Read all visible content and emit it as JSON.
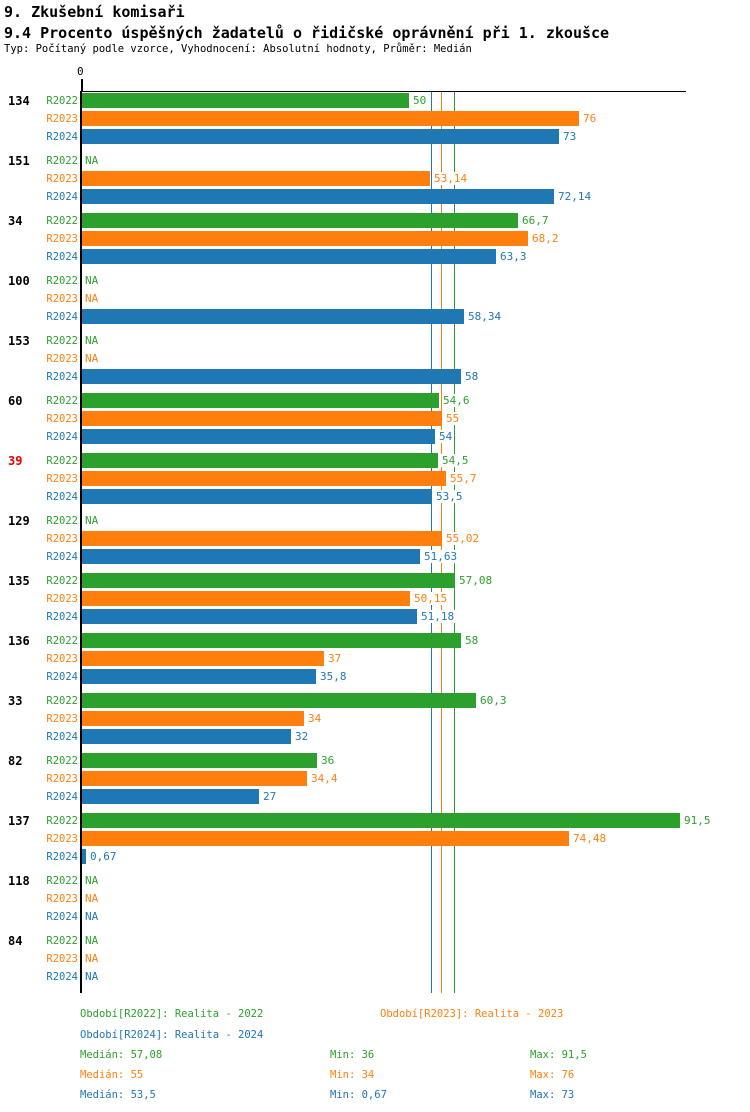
{
  "header": {
    "title": "9. Zkušební komisaři",
    "subtitle": "9.4 Procento úspěšných žadatelů o řidičské oprávnění při 1. zkoušce",
    "meta": "Typ: Počítaný podle vzorce, Vyhodnocení: Absolutní hodnoty, Průměr: Medián"
  },
  "colors": {
    "r2022": "#2ca02c",
    "r2023": "#ff7f0e",
    "r2024": "#1f77b4",
    "highlight_id": "#ee0000",
    "axis": "#000000"
  },
  "chart_data": {
    "type": "bar",
    "orientation": "horizontal",
    "title": "9.4 Procento úspěšných žadatelů o řidičské oprávnění při 1. zkoušce",
    "x_axis": {
      "origin_label": "0",
      "min": 0,
      "max": 92.5,
      "grid": false
    },
    "na_label": "NA",
    "series": [
      {
        "name": "R2022",
        "color": "#2ca02c",
        "median": 57.08,
        "min": 36,
        "max": 91.5
      },
      {
        "name": "R2023",
        "color": "#ff7f0e",
        "median": 55,
        "min": 34,
        "max": 76
      },
      {
        "name": "R2024",
        "color": "#1f77b4",
        "median": 53.5,
        "min": 0.67,
        "max": 73
      }
    ],
    "median_lines": [
      57.08,
      55,
      53.5
    ],
    "groups": [
      {
        "id": "134",
        "highlight": false,
        "values": [
          50,
          76,
          73
        ],
        "labels": [
          "50",
          "76",
          "73"
        ]
      },
      {
        "id": "151",
        "highlight": false,
        "values": [
          null,
          53.14,
          72.14
        ],
        "labels": [
          "NA",
          "53,14",
          "72,14"
        ]
      },
      {
        "id": "34",
        "highlight": false,
        "values": [
          66.7,
          68.2,
          63.3
        ],
        "labels": [
          "66,7",
          "68,2",
          "63,3"
        ]
      },
      {
        "id": "100",
        "highlight": false,
        "values": [
          null,
          null,
          58.34
        ],
        "labels": [
          "NA",
          "NA",
          "58,34"
        ]
      },
      {
        "id": "153",
        "highlight": false,
        "values": [
          null,
          null,
          58
        ],
        "labels": [
          "NA",
          "NA",
          "58"
        ]
      },
      {
        "id": "60",
        "highlight": false,
        "values": [
          54.6,
          55,
          54
        ],
        "labels": [
          "54,6",
          "55",
          "54"
        ]
      },
      {
        "id": "39",
        "highlight": true,
        "values": [
          54.5,
          55.7,
          53.5
        ],
        "labels": [
          "54,5",
          "55,7",
          "53,5"
        ]
      },
      {
        "id": "129",
        "highlight": false,
        "values": [
          null,
          55.02,
          51.63
        ],
        "labels": [
          "NA",
          "55,02",
          "51,63"
        ]
      },
      {
        "id": "135",
        "highlight": false,
        "values": [
          57.08,
          50.15,
          51.18
        ],
        "labels": [
          "57,08",
          "50,15",
          "51,18"
        ]
      },
      {
        "id": "136",
        "highlight": false,
        "values": [
          58,
          37,
          35.8
        ],
        "labels": [
          "58",
          "37",
          "35,8"
        ]
      },
      {
        "id": "33",
        "highlight": false,
        "values": [
          60.3,
          34,
          32
        ],
        "labels": [
          "60,3",
          "34",
          "32"
        ]
      },
      {
        "id": "82",
        "highlight": false,
        "values": [
          36,
          34.4,
          27
        ],
        "labels": [
          "36",
          "34,4",
          "27"
        ]
      },
      {
        "id": "137",
        "highlight": false,
        "values": [
          91.5,
          74.48,
          0.67
        ],
        "labels": [
          "91,5",
          "74,48",
          "0,67"
        ]
      },
      {
        "id": "118",
        "highlight": false,
        "values": [
          null,
          null,
          null
        ],
        "labels": [
          "NA",
          "NA",
          "NA"
        ]
      },
      {
        "id": "84",
        "highlight": false,
        "values": [
          null,
          null,
          null
        ],
        "labels": [
          "NA",
          "NA",
          "NA"
        ]
      }
    ]
  },
  "footer": {
    "legend": [
      {
        "series": "R2022",
        "text": "Období[R2022]: Realita - 2022",
        "color": "#2ca02c"
      },
      {
        "series": "R2023",
        "text": "Období[R2023]: Realita - 2023",
        "color": "#ff7f0e"
      },
      {
        "series": "R2024",
        "text": "Období[R2024]: Realita - 2024",
        "color": "#1f77b4"
      }
    ],
    "stats": [
      {
        "series": "R2022",
        "color": "#2ca02c",
        "median": "Medián: 57,08",
        "min": "Min: 36",
        "max": "Max: 91,5"
      },
      {
        "series": "R2023",
        "color": "#ff7f0e",
        "median": "Medián: 55",
        "min": "Min: 34",
        "max": "Max: 76"
      },
      {
        "series": "R2024",
        "color": "#1f77b4",
        "median": "Medián: 53,5",
        "min": "Min: 0,67",
        "max": "Max: 73"
      }
    ]
  }
}
